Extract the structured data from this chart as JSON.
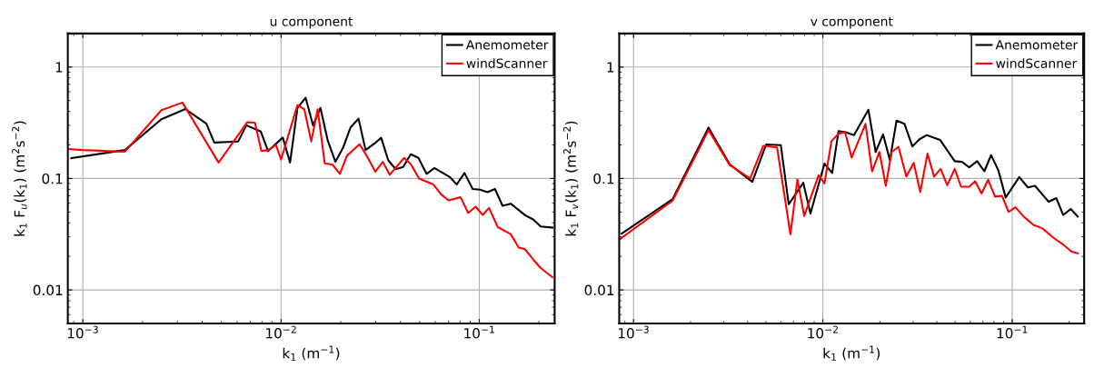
{
  "chart_data": [
    {
      "type": "line",
      "title": "u component",
      "xlabel": "k$_{1}$ (m$^{−1}$)",
      "ylabel": "k$_{1}$ F$_{u}$(k$_{1}$) (m$^{2}$s$^{−2}$)",
      "log": "xy",
      "grid": true,
      "legend": "top right",
      "xlim": [
        0.00084,
        0.24
      ],
      "ylim": [
        0.005,
        2
      ],
      "xticks": [
        {
          "value": 0.001,
          "label": "10$^{−3}$"
        },
        {
          "value": 0.01,
          "label": "10$^{−2}$"
        },
        {
          "value": 0.1,
          "label": "10$^{−1}$"
        }
      ],
      "yticks": [
        {
          "value": 0.01,
          "label": "0.01"
        },
        {
          "value": 0.1,
          "label": "0.1"
        },
        {
          "value": 1,
          "label": "1"
        }
      ],
      "series": [
        {
          "name": "Anemometer",
          "color": "#000000",
          "x": [
            0.000875,
            0.00163,
            0.00249,
            0.00329,
            0.0042,
            0.0046,
            0.00608,
            0.00668,
            0.0079,
            0.0086,
            0.009,
            0.0102,
            0.0111,
            0.0121,
            0.0133,
            0.0145,
            0.0158,
            0.0172,
            0.0188,
            0.0205,
            0.0224,
            0.0246,
            0.0267,
            0.0296,
            0.032,
            0.0347,
            0.0379,
            0.0413,
            0.0451,
            0.0493,
            0.0542,
            0.0593,
            0.0711,
            0.0769,
            0.0842,
            0.0926,
            0.101,
            0.11,
            0.12,
            0.131,
            0.144,
            0.171,
            0.187,
            0.204,
            0.234
          ],
          "values": [
            0.152,
            0.18,
            0.34,
            0.42,
            0.31,
            0.21,
            0.215,
            0.3,
            0.264,
            0.176,
            0.19,
            0.233,
            0.139,
            0.43,
            0.53,
            0.3,
            0.43,
            0.219,
            0.141,
            0.187,
            0.287,
            0.344,
            0.18,
            0.206,
            0.232,
            0.146,
            0.121,
            0.127,
            0.165,
            0.153,
            0.11,
            0.124,
            0.103,
            0.0883,
            0.112,
            0.0804,
            0.0794,
            0.0754,
            0.0804,
            0.0569,
            0.0594,
            0.0466,
            0.0429,
            0.0371,
            0.0362
          ]
        },
        {
          "name": "windScanner",
          "color": "#ff0000",
          "x": [
            0.000845,
            0.001,
            0.00163,
            0.00249,
            0.00318,
            0.00484,
            0.00676,
            0.00738,
            0.00796,
            0.0086,
            0.00942,
            0.01,
            0.0121,
            0.0131,
            0.0142,
            0.0153,
            0.0166,
            0.0182,
            0.0198,
            0.0215,
            0.0249,
            0.0272,
            0.0299,
            0.0326,
            0.0353,
            0.0418,
            0.0451,
            0.0497,
            0.0587,
            0.0641,
            0.07,
            0.0805,
            0.0879,
            0.0959,
            0.104,
            0.112,
            0.124,
            0.144,
            0.158,
            0.17,
            0.187,
            0.204,
            0.234
          ],
          "values": [
            0.184,
            0.18,
            0.174,
            0.41,
            0.48,
            0.139,
            0.32,
            0.317,
            0.176,
            0.18,
            0.2,
            0.148,
            0.456,
            0.418,
            0.215,
            0.418,
            0.137,
            0.133,
            0.11,
            0.16,
            0.203,
            0.157,
            0.115,
            0.141,
            0.108,
            0.153,
            0.135,
            0.1,
            0.0883,
            0.0721,
            0.0637,
            0.0678,
            0.0492,
            0.0558,
            0.0471,
            0.0544,
            0.0366,
            0.0317,
            0.024,
            0.0232,
            0.0188,
            0.0157,
            0.013
          ]
        }
      ]
    },
    {
      "type": "line",
      "title": "v component",
      "xlabel": "k$_{1}$ (m$^{−1}$)",
      "ylabel": "k$_{1}$ F$_{v}$(k$_{1}$) (m$^{2}$s$^{−2}$)",
      "log": "xy",
      "grid": true,
      "legend": "top right",
      "xlim": [
        0.00084,
        0.24
      ],
      "ylim": [
        0.005,
        2
      ],
      "xticks": [
        {
          "value": 0.001,
          "label": "10$^{−3}$"
        },
        {
          "value": 0.01,
          "label": "10$^{−2}$"
        },
        {
          "value": 0.1,
          "label": "10$^{−1}$"
        }
      ],
      "yticks": [
        {
          "value": 0.01,
          "label": "0.01"
        },
        {
          "value": 0.1,
          "label": "0.1"
        },
        {
          "value": 1,
          "label": "1"
        }
      ],
      "series": [
        {
          "name": "Anemometer",
          "color": "#000000",
          "x": [
            0.000865,
            0.00161,
            0.00249,
            0.00322,
            0.00424,
            0.00502,
            0.006,
            0.0066,
            0.00788,
            0.0086,
            0.0102,
            0.0112,
            0.0121,
            0.0132,
            0.0146,
            0.0174,
            0.019,
            0.0208,
            0.0226,
            0.0245,
            0.027,
            0.0297,
            0.0324,
            0.0354,
            0.0416,
            0.0497,
            0.0543,
            0.0593,
            0.0653,
            0.0713,
            0.0774,
            0.0846,
            0.0924,
            0.109,
            0.121,
            0.132,
            0.156,
            0.171,
            0.186,
            0.204,
            0.222
          ],
          "values": [
            0.032,
            0.0654,
            0.286,
            0.134,
            0.0933,
            0.202,
            0.199,
            0.0587,
            0.0915,
            0.0485,
            0.136,
            0.112,
            0.266,
            0.26,
            0.245,
            0.414,
            0.173,
            0.249,
            0.146,
            0.33,
            0.309,
            0.194,
            0.225,
            0.245,
            0.222,
            0.143,
            0.141,
            0.126,
            0.143,
            0.116,
            0.162,
            0.118,
            0.0675,
            0.103,
            0.0832,
            0.0859,
            0.0618,
            0.0667,
            0.047,
            0.0533,
            0.0455
          ]
        },
        {
          "name": "windScanner",
          "color": "#ff0000",
          "x": [
            0.000845,
            0.00161,
            0.00249,
            0.00322,
            0.00413,
            0.00484,
            0.00573,
            0.00674,
            0.00734,
            0.00797,
            0.0095,
            0.0102,
            0.0111,
            0.0121,
            0.0131,
            0.0142,
            0.0168,
            0.0182,
            0.0199,
            0.0215,
            0.0231,
            0.0251,
            0.0276,
            0.0302,
            0.0327,
            0.0357,
            0.0387,
            0.0419,
            0.0454,
            0.0497,
            0.0537,
            0.0593,
            0.0637,
            0.0689,
            0.0747,
            0.0811,
            0.0883,
            0.0958,
            0.104,
            0.115,
            0.13,
            0.144,
            0.166,
            0.185,
            0.206,
            0.222
          ],
          "values": [
            0.0285,
            0.0633,
            0.272,
            0.132,
            0.1,
            0.196,
            0.19,
            0.0315,
            0.098,
            0.0461,
            0.107,
            0.0903,
            0.216,
            0.252,
            0.26,
            0.154,
            0.309,
            0.116,
            0.173,
            0.0859,
            0.173,
            0.192,
            0.104,
            0.138,
            0.0756,
            0.167,
            0.104,
            0.122,
            0.0869,
            0.122,
            0.0843,
            0.0843,
            0.0944,
            0.0733,
            0.0975,
            0.0688,
            0.07,
            0.0501,
            0.0551,
            0.0455,
            0.0381,
            0.0358,
            0.0292,
            0.0257,
            0.022,
            0.0213
          ]
        }
      ]
    }
  ]
}
